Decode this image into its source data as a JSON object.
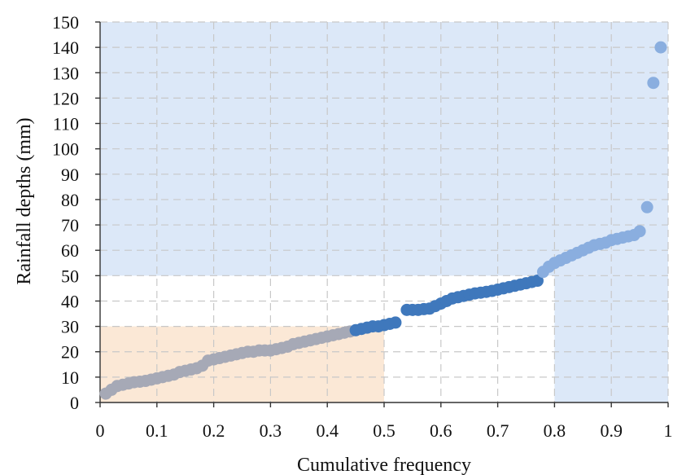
{
  "chart_data": {
    "type": "scatter",
    "title": "",
    "xlabel": "Cumulative frequency",
    "ylabel": "Rainfall depths (mm)",
    "xlim": [
      0,
      1
    ],
    "ylim": [
      0,
      150
    ],
    "x_ticks": [
      0,
      0.1,
      0.2,
      0.3,
      0.4,
      0.5,
      0.6,
      0.7,
      0.8,
      0.9,
      1
    ],
    "x_tick_labels": [
      "0",
      "0.1",
      "0.2",
      "0.3",
      "0.4",
      "0.5",
      "0.6",
      "0.7",
      "0.8",
      "0.9",
      "1"
    ],
    "y_ticks": [
      0,
      10,
      20,
      30,
      40,
      50,
      60,
      70,
      80,
      90,
      100,
      110,
      120,
      130,
      140,
      150
    ],
    "y_tick_labels": [
      "0",
      "10",
      "20",
      "30",
      "40",
      "50",
      "60",
      "70",
      "80",
      "90",
      "100",
      "110",
      "120",
      "130",
      "140",
      "150"
    ],
    "grid": "dashed, both axes",
    "legend": "none",
    "regions": [
      {
        "x_range": [
          0,
          1
        ],
        "y_range": [
          50,
          150
        ],
        "color": "#dce8f8"
      },
      {
        "x_range": [
          0.8,
          1
        ],
        "y_range": [
          0,
          50
        ],
        "color": "#dce8f8"
      },
      {
        "x_range": [
          0,
          0.5
        ],
        "y_range": [
          0,
          30
        ],
        "color": "#fbe8d6"
      }
    ],
    "series": [
      {
        "color": "#a6a9b6",
        "points": [
          [
            0.01,
            3.5
          ],
          [
            0.02,
            5
          ],
          [
            0.03,
            6.5
          ],
          [
            0.04,
            7
          ],
          [
            0.05,
            7.5
          ],
          [
            0.06,
            8
          ],
          [
            0.07,
            8.2
          ],
          [
            0.08,
            8.5
          ],
          [
            0.09,
            9
          ],
          [
            0.1,
            9.5
          ],
          [
            0.11,
            10
          ],
          [
            0.12,
            10.5
          ],
          [
            0.13,
            11
          ],
          [
            0.14,
            12
          ],
          [
            0.15,
            12.5
          ],
          [
            0.16,
            13
          ],
          [
            0.17,
            13.5
          ],
          [
            0.18,
            14.5
          ],
          [
            0.19,
            16.5
          ],
          [
            0.2,
            17
          ],
          [
            0.21,
            17.5
          ],
          [
            0.22,
            18
          ],
          [
            0.23,
            18.5
          ],
          [
            0.24,
            19
          ],
          [
            0.25,
            19.5
          ],
          [
            0.26,
            20
          ],
          [
            0.27,
            20
          ],
          [
            0.28,
            20.5
          ],
          [
            0.29,
            20.5
          ],
          [
            0.3,
            20.5
          ],
          [
            0.31,
            21
          ],
          [
            0.32,
            21.5
          ],
          [
            0.33,
            22
          ],
          [
            0.34,
            23
          ],
          [
            0.35,
            23.5
          ],
          [
            0.36,
            24
          ],
          [
            0.37,
            24.5
          ],
          [
            0.38,
            25
          ],
          [
            0.39,
            25.5
          ],
          [
            0.4,
            26
          ],
          [
            0.41,
            26.5
          ],
          [
            0.42,
            27
          ],
          [
            0.43,
            27.5
          ],
          [
            0.44,
            28
          ]
        ]
      },
      {
        "color": "#3f78bc",
        "points": [
          [
            0.45,
            28.5
          ],
          [
            0.46,
            29
          ],
          [
            0.47,
            29.5
          ],
          [
            0.48,
            30
          ],
          [
            0.49,
            30
          ],
          [
            0.5,
            30.5
          ],
          [
            0.51,
            31
          ],
          [
            0.52,
            31.5
          ],
          [
            0.54,
            36.5
          ],
          [
            0.55,
            36.5
          ],
          [
            0.56,
            36.5
          ],
          [
            0.57,
            36.8
          ],
          [
            0.58,
            37
          ],
          [
            0.59,
            38
          ],
          [
            0.6,
            39
          ],
          [
            0.61,
            40
          ],
          [
            0.62,
            41
          ],
          [
            0.63,
            41.5
          ],
          [
            0.64,
            42
          ],
          [
            0.65,
            42.5
          ],
          [
            0.66,
            43
          ],
          [
            0.67,
            43.3
          ],
          [
            0.68,
            43.6
          ],
          [
            0.69,
            44
          ],
          [
            0.7,
            44.5
          ],
          [
            0.71,
            45
          ],
          [
            0.72,
            45.5
          ],
          [
            0.73,
            46
          ],
          [
            0.74,
            46.5
          ],
          [
            0.75,
            47
          ],
          [
            0.76,
            47.5
          ],
          [
            0.77,
            48
          ]
        ]
      },
      {
        "color": "#8aaedf",
        "points": [
          [
            0.78,
            51.5
          ],
          [
            0.79,
            53.5
          ],
          [
            0.8,
            55
          ],
          [
            0.81,
            56
          ],
          [
            0.82,
            57
          ],
          [
            0.83,
            58
          ],
          [
            0.84,
            59
          ],
          [
            0.85,
            60
          ],
          [
            0.86,
            61
          ],
          [
            0.87,
            62
          ],
          [
            0.88,
            62.5
          ],
          [
            0.89,
            63
          ],
          [
            0.9,
            64
          ],
          [
            0.91,
            64.5
          ],
          [
            0.92,
            65
          ],
          [
            0.93,
            65.5
          ],
          [
            0.94,
            66
          ],
          [
            0.95,
            67.5
          ],
          [
            0.963,
            77
          ],
          [
            0.974,
            126
          ],
          [
            0.987,
            140
          ]
        ]
      }
    ]
  }
}
